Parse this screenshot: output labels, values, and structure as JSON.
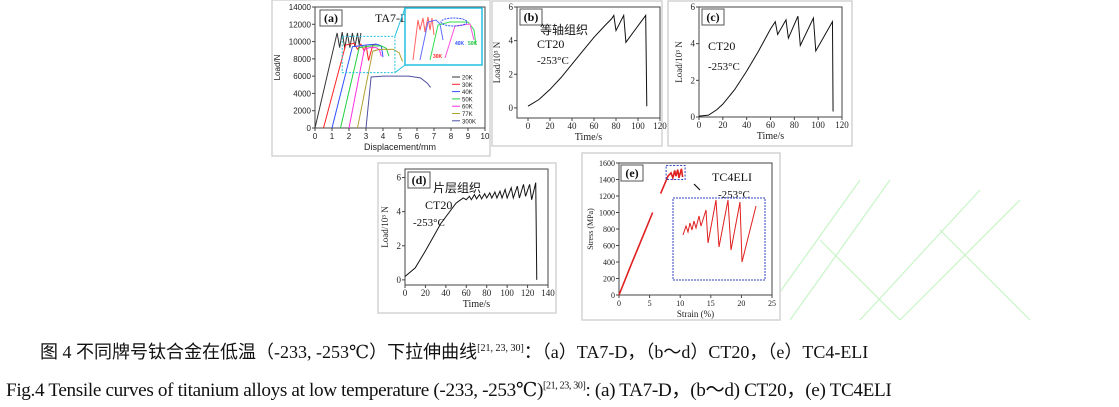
{
  "caption": {
    "zh_main": "图 4  不同牌号钛合金在低温（-233, -253℃）下拉伸曲线",
    "zh_refs": "[21, 23, 30]",
    "zh_tail": "：（a）TA7-D，（b～d）CT20，（e）TC4-ELI",
    "en_main": "Fig.4 Tensile curves of titanium alloys at low temperature (-233, -253℃)",
    "en_refs": "[21, 23, 30]",
    "en_tail": ": (a) TA7-D，(b～d) CT20，(e) TC4ELI"
  },
  "chart_data": [
    {
      "id": "a",
      "type": "line",
      "panel_label": "(a)",
      "title": "TA7-D",
      "xlabel": "Displacement/mm",
      "ylabel": "Load/N",
      "xlim": [
        0,
        10
      ],
      "ylim": [
        0,
        14000
      ],
      "xticks": [
        0,
        1,
        2,
        3,
        4,
        5,
        6,
        7,
        8,
        9,
        10
      ],
      "yticks": [
        0,
        2000,
        4000,
        6000,
        8000,
        10000,
        12000,
        14000
      ],
      "legend_position": "bottom-right",
      "inset_labels": [
        "30K",
        "40K",
        "50K"
      ],
      "series": [
        {
          "name": "20K",
          "color": "#333333",
          "points": [
            [
              0,
              0
            ],
            [
              1.3,
              11000
            ],
            [
              1.45,
              9300
            ],
            [
              1.6,
              11100
            ],
            [
              1.75,
              9200
            ],
            [
              1.9,
              11000
            ],
            [
              2.05,
              9300
            ],
            [
              2.2,
              11000
            ],
            [
              2.35,
              9400
            ],
            [
              2.5,
              11000
            ],
            [
              2.6,
              9600
            ],
            [
              2.7,
              11000
            ]
          ]
        },
        {
          "name": "30K",
          "color": "#ff2020",
          "points": [
            [
              0.5,
              0
            ],
            [
              1.8,
              9600
            ],
            [
              2.3,
              9800
            ],
            [
              2.5,
              9100
            ],
            [
              2.7,
              9700
            ],
            [
              2.9,
              8900
            ],
            [
              3.0,
              9600
            ],
            [
              3.15,
              7800
            ],
            [
              3.4,
              9600
            ],
            [
              3.6,
              9700
            ]
          ]
        },
        {
          "name": "40K",
          "color": "#3050ff",
          "points": [
            [
              1,
              0
            ],
            [
              2.2,
              9400
            ],
            [
              3,
              9600
            ],
            [
              3.6,
              9700
            ],
            [
              3.9,
              9500
            ],
            [
              4.0,
              8200
            ]
          ]
        },
        {
          "name": "50K",
          "color": "#20d040",
          "points": [
            [
              1.5,
              0
            ],
            [
              2.6,
              9300
            ],
            [
              3.3,
              9500
            ],
            [
              3.9,
              9500
            ],
            [
              4.2,
              9200
            ],
            [
              4.35,
              8300
            ]
          ]
        },
        {
          "name": "60K",
          "color": "#ff30e0",
          "points": [
            [
              2,
              0
            ],
            [
              2.9,
              9100
            ],
            [
              3.2,
              9300
            ],
            [
              3.6,
              9300
            ],
            [
              3.8,
              9000
            ],
            [
              3.9,
              8300
            ]
          ]
        },
        {
          "name": "77K",
          "color": "#b0a030",
          "points": [
            [
              2.5,
              0
            ],
            [
              3.4,
              8900
            ],
            [
              3.8,
              9100
            ],
            [
              4.6,
              9100
            ],
            [
              4.95,
              8700
            ],
            [
              5.15,
              7700
            ]
          ]
        },
        {
          "name": "300K",
          "color": "#5050a0",
          "points": [
            [
              3,
              0
            ],
            [
              3.3,
              5900
            ],
            [
              4,
              6000
            ],
            [
              5.5,
              6000
            ],
            [
              6.2,
              5800
            ],
            [
              6.6,
              5200
            ],
            [
              6.8,
              4700
            ]
          ]
        }
      ]
    },
    {
      "id": "b",
      "type": "line",
      "panel_label": "(b)",
      "annotations": [
        "等轴组织",
        "CT20",
        "-253°C"
      ],
      "xlabel": "Time/s",
      "ylabel": "Load/10³ N",
      "xlim": [
        -10,
        120
      ],
      "ylim": [
        -0.6,
        6
      ],
      "xticks": [
        0,
        20,
        40,
        60,
        80,
        100,
        120
      ],
      "yticks": [
        0,
        2,
        4,
        6
      ],
      "series": [
        {
          "color": "#111111",
          "points": [
            [
              0,
              0.1
            ],
            [
              10,
              0.5
            ],
            [
              20,
              1.1
            ],
            [
              30,
              1.8
            ],
            [
              40,
              2.6
            ],
            [
              50,
              3.4
            ],
            [
              60,
              4.2
            ],
            [
              70,
              4.9
            ],
            [
              76,
              5.3
            ],
            [
              78,
              5.5
            ],
            [
              80,
              4.6
            ],
            [
              87,
              5.5
            ],
            [
              89,
              3.9
            ],
            [
              107,
              5.5
            ],
            [
              108,
              0.1
            ]
          ]
        }
      ]
    },
    {
      "id": "c",
      "type": "line",
      "panel_label": "(c)",
      "annotations": [
        "CT20",
        "-253°C"
      ],
      "xlabel": "Time/s",
      "ylabel": "Load/10³ N",
      "xlim": [
        0,
        120
      ],
      "ylim": [
        0,
        6
      ],
      "xticks": [
        0,
        20,
        40,
        60,
        80,
        100,
        120
      ],
      "yticks": [
        0,
        2,
        4,
        6
      ],
      "series": [
        {
          "color": "#111111",
          "points": [
            [
              0,
              0.05
            ],
            [
              8,
              0.1
            ],
            [
              15,
              0.4
            ],
            [
              20,
              0.7
            ],
            [
              30,
              1.5
            ],
            [
              40,
              2.5
            ],
            [
              50,
              3.6
            ],
            [
              60,
              4.8
            ],
            [
              64,
              5.2
            ],
            [
              66,
              4.5
            ],
            [
              73,
              5.3
            ],
            [
              75,
              4.3
            ],
            [
              83,
              5.5
            ],
            [
              85,
              3.9
            ],
            [
              96,
              5.4
            ],
            [
              98,
              3.6
            ],
            [
              112,
              5.2
            ],
            [
              112.5,
              0.3
            ]
          ]
        }
      ]
    },
    {
      "id": "d",
      "type": "line",
      "panel_label": "(d)",
      "annotations": [
        "片层组织",
        "CT20",
        "-253°C"
      ],
      "xlabel": "Time/s",
      "ylabel": "Load/10³ N",
      "xlim": [
        0,
        140
      ],
      "ylim": [
        -0.3,
        6.5
      ],
      "xticks": [
        0,
        20,
        40,
        60,
        80,
        100,
        120,
        140
      ],
      "yticks": [
        0,
        2,
        4,
        6
      ],
      "series": [
        {
          "color": "#111111",
          "points": [
            [
              0,
              0.2
            ],
            [
              10,
              0.7
            ],
            [
              20,
              1.7
            ],
            [
              35,
              3.3
            ],
            [
              50,
              4.5
            ],
            [
              57,
              4.8
            ],
            [
              60,
              4.7
            ],
            [
              63,
              4.9
            ],
            [
              65,
              4.7
            ],
            [
              68,
              5.0
            ],
            [
              70,
              4.75
            ],
            [
              73,
              5.0
            ],
            [
              75,
              4.75
            ],
            [
              78,
              5.05
            ],
            [
              80,
              4.8
            ],
            [
              83,
              5.1
            ],
            [
              85,
              4.8
            ],
            [
              88,
              5.15
            ],
            [
              90,
              4.8
            ],
            [
              93,
              5.2
            ],
            [
              95,
              4.8
            ],
            [
              98,
              5.3
            ],
            [
              100,
              4.8
            ],
            [
              104,
              5.4
            ],
            [
              106,
              4.8
            ],
            [
              110,
              5.5
            ],
            [
              112,
              4.8
            ],
            [
              116,
              5.6
            ],
            [
              118,
              4.9
            ],
            [
              122,
              5.6
            ],
            [
              124,
              4.7
            ],
            [
              128,
              5.7
            ],
            [
              129,
              0
            ]
          ]
        }
      ]
    },
    {
      "id": "e",
      "type": "line",
      "panel_label": "(e)",
      "annotations": [
        "TC4ELI",
        "-253°C"
      ],
      "xlabel": "Strain (%)",
      "ylabel": "Stress (MPa)",
      "xlim": [
        0,
        25
      ],
      "ylim": [
        0,
        1600
      ],
      "xticks": [
        0,
        5,
        10,
        15,
        20,
        25
      ],
      "yticks": [
        0,
        200,
        400,
        600,
        800,
        1000,
        1200,
        1400,
        1600
      ],
      "series": [
        {
          "color": "#e02020",
          "points": [
            [
              0,
              0
            ],
            [
              2,
              370
            ],
            [
              4,
              730
            ],
            [
              5.5,
              1000
            ]
          ]
        },
        {
          "color": "#e02020",
          "points": [
            [
              6.8,
              1230
            ],
            [
              8,
              1440
            ],
            [
              8.5,
              1480
            ],
            [
              8.8,
              1420
            ],
            [
              9.1,
              1510
            ],
            [
              9.3,
              1440
            ],
            [
              9.6,
              1520
            ],
            [
              9.8,
              1420
            ],
            [
              10.2,
              1530
            ],
            [
              10.4,
              1430
            ]
          ]
        }
      ]
    }
  ]
}
